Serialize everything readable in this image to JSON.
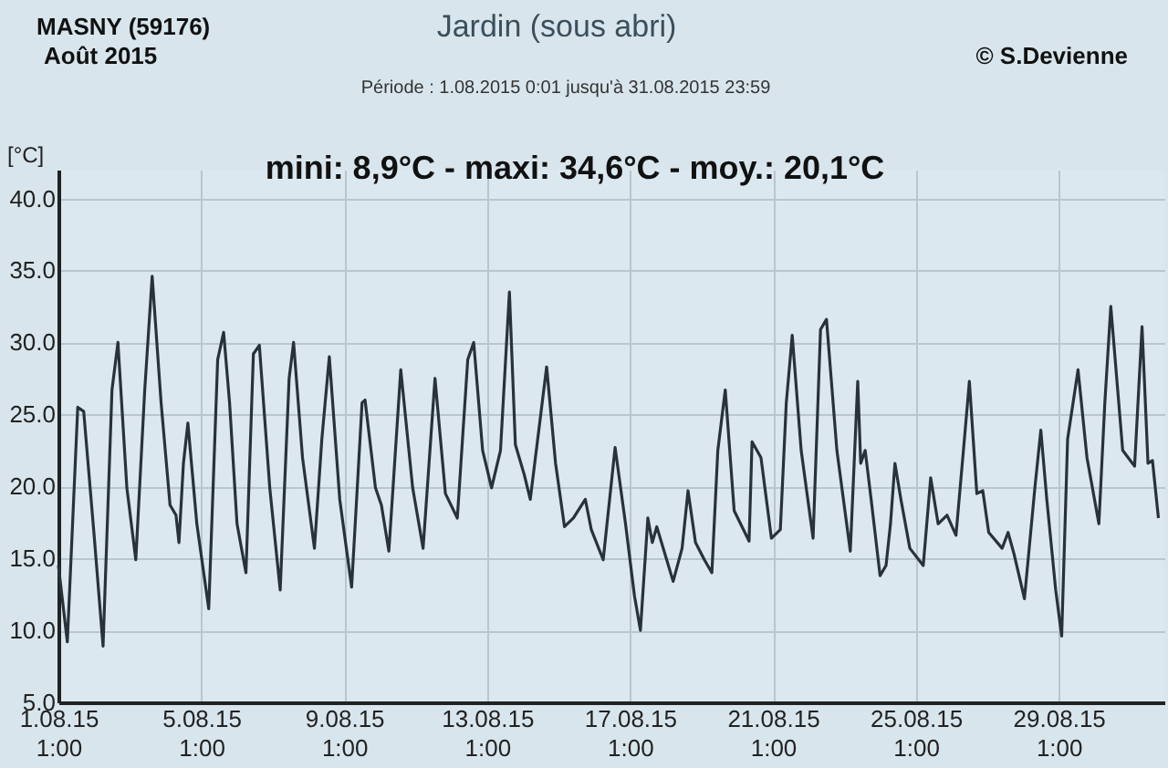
{
  "chart_data": {
    "type": "line",
    "title": "Jardin (sous abri)",
    "subtitle": "Période :  1.08.2015   0:01   jusqu'à  31.08.2015   23:59",
    "ylabel": "[°C]",
    "annotations": [
      "MASNY (59176)",
      "Août  2015",
      "© S.Devienne",
      "mini:  8,9°C - maxi: 34,6°C - moy.: 20,1°C"
    ],
    "x": [
      "2015-08-01T01:00",
      "2015-08-01T07:00",
      "2015-08-01T14:00",
      "2015-08-01T18:00",
      "2015-08-02T01:00",
      "2015-08-02T07:00",
      "2015-08-02T13:00",
      "2015-08-02T17:00",
      "2015-08-02T23:00",
      "2015-08-03T05:00",
      "2015-08-03T11:00",
      "2015-08-03T16:00",
      "2015-08-03T22:00",
      "2015-08-04T04:00",
      "2015-08-04T08:00",
      "2015-08-04T10:00",
      "2015-08-04T13:00",
      "2015-08-04T16:00",
      "2015-08-04T22:00",
      "2015-08-05T06:00",
      "2015-08-05T12:00",
      "2015-08-05T16:00",
      "2015-08-05T20:00",
      "2015-08-06T01:00",
      "2015-08-06T07:00",
      "2015-08-06T12:00",
      "2015-08-06T16:00",
      "2015-08-06T23:00",
      "2015-08-07T06:00",
      "2015-08-07T12:00",
      "2015-08-07T15:00",
      "2015-08-07T21:00",
      "2015-08-08T05:00",
      "2015-08-08T10:00",
      "2015-08-08T15:00",
      "2015-08-08T22:00",
      "2015-08-09T06:00",
      "2015-08-09T13:00",
      "2015-08-09T15:00",
      "2015-08-09T22:00",
      "2015-08-10T02:00",
      "2015-08-10T07:00",
      "2015-08-10T15:00",
      "2015-08-10T23:00",
      "2015-08-11T06:00",
      "2015-08-11T14:00",
      "2015-08-11T21:00",
      "2015-08-12T05:00",
      "2015-08-12T12:00",
      "2015-08-12T16:00",
      "2015-08-12T22:00",
      "2015-08-13T04:00",
      "2015-08-13T10:00",
      "2015-08-13T16:00",
      "2015-08-13T20:00",
      "2015-08-14T02:00",
      "2015-08-14T06:00",
      "2015-08-14T14:00",
      "2015-08-14T17:00",
      "2015-08-14T23:00",
      "2015-08-15T05:00",
      "2015-08-15T11:00",
      "2015-08-15T19:00",
      "2015-08-15T23:00",
      "2015-08-16T07:00",
      "2015-08-16T15:00",
      "2015-08-16T22:00",
      "2015-08-17T04:00",
      "2015-08-17T08:00",
      "2015-08-17T13:00",
      "2015-08-17T16:00",
      "2015-08-17T19:00",
      "2015-08-18T06:00",
      "2015-08-18T12:00",
      "2015-08-18T16:00",
      "2015-08-18T21:00",
      "2015-08-19T03:00",
      "2015-08-19T08:00",
      "2015-08-19T12:00",
      "2015-08-19T17:00",
      "2015-08-19T23:00",
      "2015-08-20T09:00",
      "2015-08-20T11:00",
      "2015-08-20T17:00",
      "2015-08-21T00:00",
      "2015-08-21T06:00",
      "2015-08-21T10:00",
      "2015-08-21T14:00",
      "2015-08-21T20:00",
      "2015-08-22T04:00",
      "2015-08-22T09:00",
      "2015-08-22T13:00",
      "2015-08-22T20:00",
      "2015-08-23T05:00",
      "2015-08-23T10:00",
      "2015-08-23T12:00",
      "2015-08-23T15:00",
      "2015-08-23T19:00",
      "2015-08-24T01:00",
      "2015-08-24T05:00",
      "2015-08-24T08:00",
      "2015-08-24T11:00",
      "2015-08-24T15:00",
      "2015-08-24T21:00",
      "2015-08-25T06:00",
      "2015-08-25T11:00",
      "2015-08-25T16:00",
      "2015-08-25T22:00",
      "2015-08-26T04:00",
      "2015-08-26T09:00",
      "2015-08-26T13:00",
      "2015-08-26T18:00",
      "2015-08-26T22:00",
      "2015-08-27T02:00",
      "2015-08-27T11:00",
      "2015-08-27T15:00",
      "2015-08-27T19:00",
      "2015-08-28T02:00",
      "2015-08-28T09:00",
      "2015-08-28T13:00",
      "2015-08-28T17:00",
      "2015-08-28T23:00",
      "2015-08-29T03:00",
      "2015-08-29T07:00",
      "2015-08-29T14:00",
      "2015-08-29T20:00",
      "2015-08-30T04:00",
      "2015-08-30T08:00",
      "2015-08-30T12:00",
      "2015-08-30T20:00",
      "2015-08-31T04:00",
      "2015-08-31T09:00",
      "2015-08-31T13:00",
      "2015-08-31T16:00",
      "2015-08-31T20:00"
    ],
    "series": [
      {
        "color": "#27323b",
        "values": [
          14.5,
          9.2,
          25.5,
          25.2,
          16.6,
          8.9,
          26.7,
          30.0,
          19.9,
          14.9,
          26.7,
          34.6,
          25.8,
          18.7,
          18.0,
          16.1,
          21.6,
          24.4,
          17.4,
          11.5,
          28.8,
          30.7,
          25.8,
          17.4,
          14.0,
          29.2,
          29.8,
          19.9,
          12.8,
          27.5,
          30.0,
          22.0,
          15.7,
          23.3,
          29.0,
          19.1,
          13.0,
          25.8,
          26.0,
          19.9,
          18.7,
          15.5,
          28.1,
          19.9,
          15.7,
          27.5,
          19.5,
          17.8,
          28.8,
          30.0,
          22.5,
          19.9,
          22.5,
          33.5,
          22.9,
          20.8,
          19.1,
          25.8,
          28.3,
          21.6,
          17.2,
          17.8,
          19.1,
          17.0,
          14.9,
          22.7,
          17.4,
          12.4,
          10.0,
          17.8,
          16.1,
          17.2,
          13.4,
          15.7,
          19.7,
          16.1,
          14.9,
          14.0,
          22.5,
          26.7,
          18.3,
          16.2,
          23.1,
          22.0,
          16.4,
          17.0,
          25.8,
          30.5,
          22.5,
          16.4,
          30.9,
          31.6,
          22.5,
          15.5,
          27.3,
          21.6,
          22.5,
          19.1,
          13.8,
          14.5,
          17.4,
          21.6,
          19.1,
          15.7,
          14.5,
          20.6,
          17.4,
          18.0,
          16.6,
          22.5,
          27.3,
          19.5,
          19.7,
          16.8,
          15.7,
          16.8,
          15.3,
          12.2,
          19.9,
          23.9,
          19.1,
          12.8,
          9.6,
          23.3,
          28.1,
          22.0,
          17.4,
          25.8,
          32.5,
          22.5,
          21.4,
          31.1,
          21.6,
          21.8,
          17.8
        ]
      }
    ],
    "xlim": [
      "2015-08-01T01:00",
      "2015-08-31T23:59"
    ],
    "xticks": [
      {
        "value": "2015-08-01T01:00",
        "label": "1.08.15 1:00"
      },
      {
        "value": "2015-08-05T01:00",
        "label": "5.08.15 1:00"
      },
      {
        "value": "2015-08-09T01:00",
        "label": "9.08.15 1:00"
      },
      {
        "value": "2015-08-13T01:00",
        "label": "13.08.15 1:00"
      },
      {
        "value": "2015-08-17T01:00",
        "label": "17.08.15 1:00"
      },
      {
        "value": "2015-08-21T01:00",
        "label": "21.08.15 1:00"
      },
      {
        "value": "2015-08-25T01:00",
        "label": "25.08.15 1:00"
      },
      {
        "value": "2015-08-29T01:00",
        "label": "29.08.15 1:00"
      }
    ],
    "ylim": [
      5,
      42
    ],
    "yticks": [
      {
        "value": 5,
        "label": "5.0"
      },
      {
        "value": 10,
        "label": "10.0"
      },
      {
        "value": 15,
        "label": "15.0"
      },
      {
        "value": 20,
        "label": "20.0"
      },
      {
        "value": 25,
        "label": "25.0"
      },
      {
        "value": 30,
        "label": "30.0"
      },
      {
        "value": 35,
        "label": "35.0"
      },
      {
        "value": 40,
        "label": "40.0"
      }
    ],
    "grid": true
  }
}
